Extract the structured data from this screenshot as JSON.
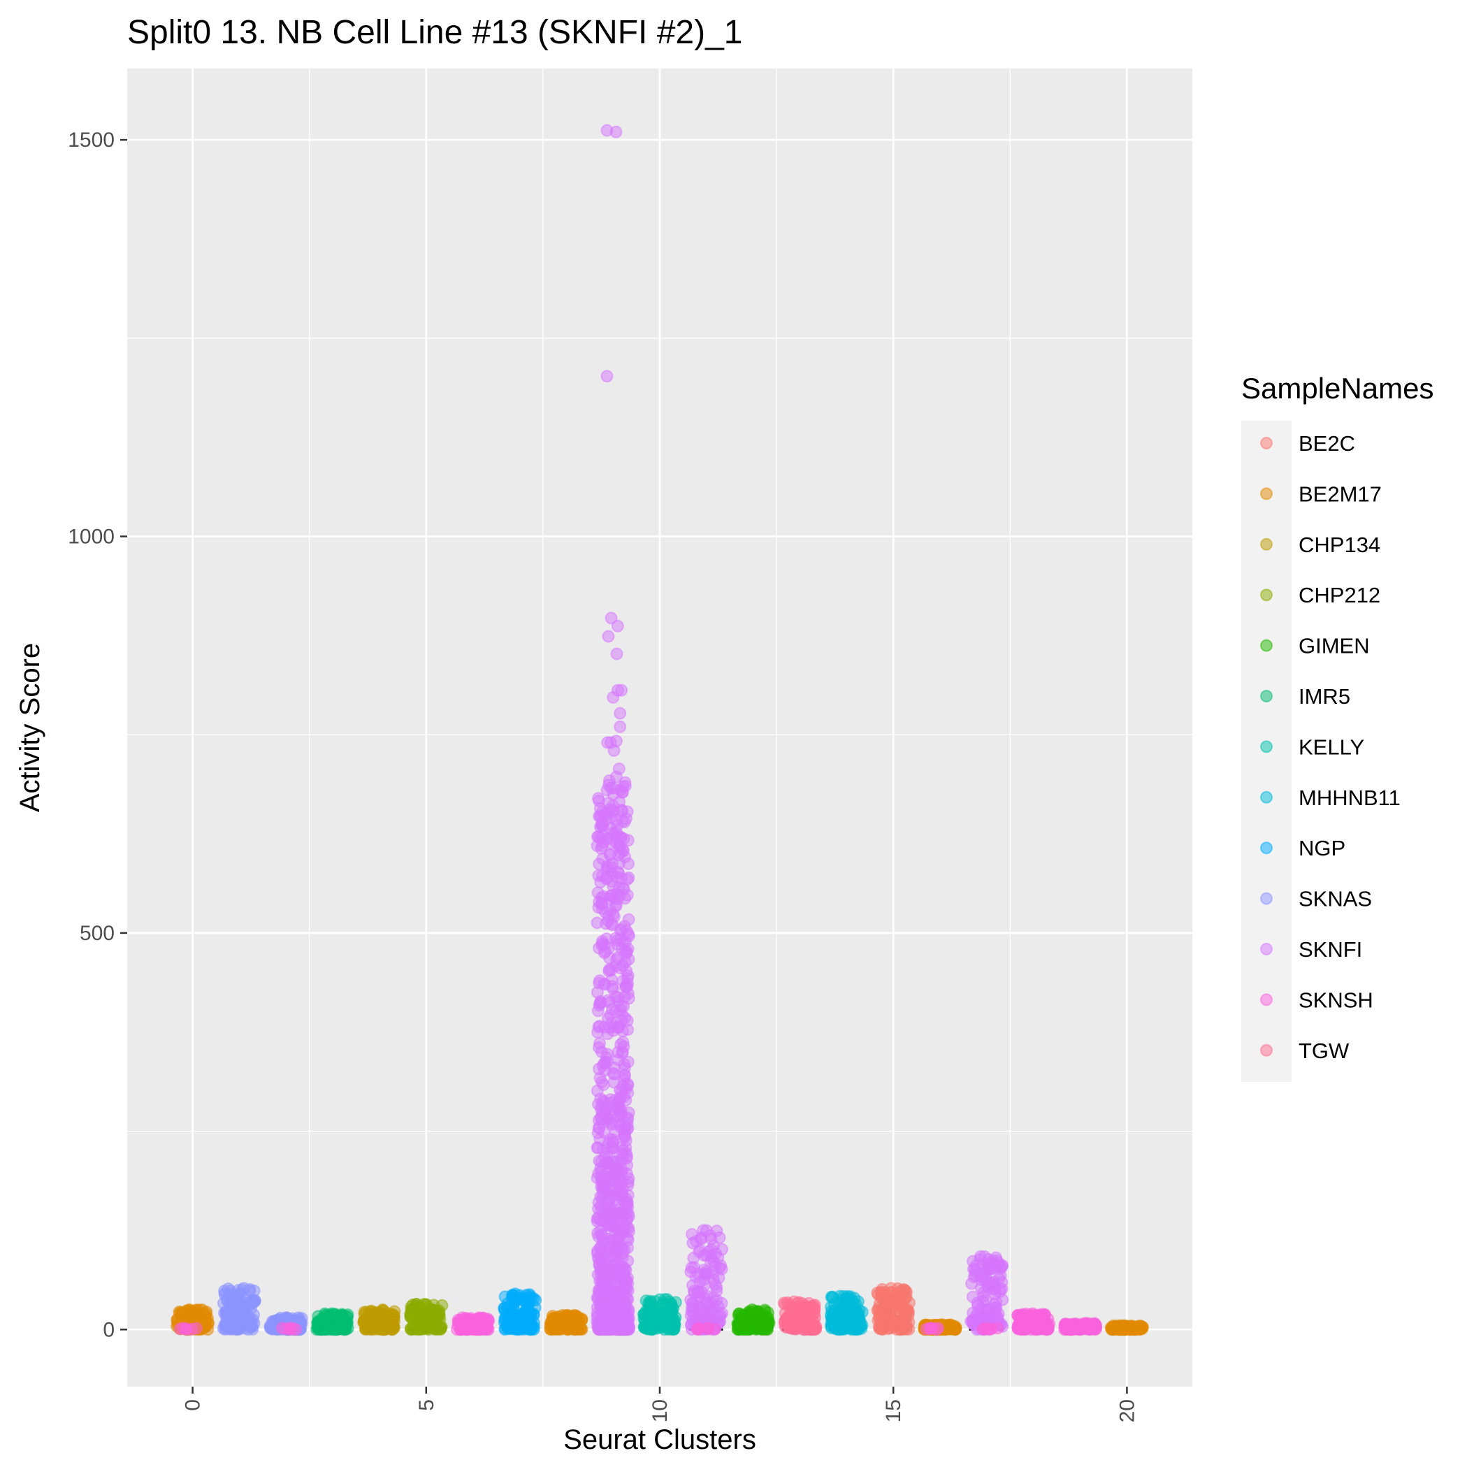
{
  "chart_data": {
    "type": "scatter",
    "title": "Split0 13. NB Cell Line #13 (SKNFI #2)_1",
    "xlabel": "Seurat Clusters",
    "ylabel": "Activity Score",
    "xlim": [
      -1.4,
      21.4
    ],
    "ylim": [
      -72,
      1590
    ],
    "x_ticks": [
      0,
      5,
      10,
      15,
      20
    ],
    "x_tick_labels": [
      "0",
      "5",
      "10",
      "15",
      "20"
    ],
    "y_ticks": [
      0,
      500,
      1000,
      1500
    ],
    "y_tick_labels": [
      "0",
      "500",
      "1000",
      "1500"
    ],
    "grid": true,
    "legend": {
      "title": "SampleNames",
      "position": "right",
      "entries": [
        {
          "name": "BE2C",
          "color": "#F8766D"
        },
        {
          "name": "BE2M17",
          "color": "#E18A00"
        },
        {
          "name": "CHP134",
          "color": "#BE9C00"
        },
        {
          "name": "CHP212",
          "color": "#8CAB00"
        },
        {
          "name": "GIMEN",
          "color": "#24B700"
        },
        {
          "name": "IMR5",
          "color": "#00BE70"
        },
        {
          "name": "KELLY",
          "color": "#00C1AB"
        },
        {
          "name": "MHHNB11",
          "color": "#00BBDA"
        },
        {
          "name": "NGP",
          "color": "#00ACFC"
        },
        {
          "name": "SKNAS",
          "color": "#8B93FF"
        },
        {
          "name": "SKNFI",
          "color": "#D575FE"
        },
        {
          "name": "SKNSH",
          "color": "#F962DD"
        },
        {
          "name": "TGW",
          "color": "#FF6C91"
        }
      ]
    },
    "clusters": [
      {
        "cluster": 0,
        "sample": "BE2M17",
        "max": 25
      },
      {
        "cluster": 1,
        "sample": "SKNAS",
        "max": 52
      },
      {
        "cluster": 2,
        "sample": "SKNAS",
        "max": 15
      },
      {
        "cluster": 3,
        "sample": "IMR5",
        "max": 20
      },
      {
        "cluster": 4,
        "sample": "CHP134",
        "max": 25
      },
      {
        "cluster": 5,
        "sample": "CHP212",
        "max": 32
      },
      {
        "cluster": 6,
        "sample": "SKNSH",
        "max": 15
      },
      {
        "cluster": 7,
        "sample": "NGP",
        "max": 45
      },
      {
        "cluster": 8,
        "sample": "BE2M17",
        "max": 18
      },
      {
        "cluster": 9,
        "sample": "SKNFI",
        "max": 1510
      },
      {
        "cluster": 10,
        "sample": "KELLY",
        "max": 38
      },
      {
        "cluster": 11,
        "sample": "SKNFI",
        "max": 125
      },
      {
        "cluster": 12,
        "sample": "GIMEN",
        "max": 25
      },
      {
        "cluster": 13,
        "sample": "TGW",
        "max": 35
      },
      {
        "cluster": 14,
        "sample": "MHHNB11",
        "max": 42
      },
      {
        "cluster": 15,
        "sample": "BE2C",
        "max": 52
      },
      {
        "cluster": 16,
        "sample": "BE2M17",
        "max": 6
      },
      {
        "cluster": 17,
        "sample": "SKNFI",
        "max": 92
      },
      {
        "cluster": 18,
        "sample": "SKNSH",
        "max": 20
      },
      {
        "cluster": 19,
        "sample": "SKNSH",
        "max": 8
      },
      {
        "cluster": 20,
        "sample": "BE2M17",
        "max": 5
      }
    ],
    "outliers": [
      {
        "x": 8.87,
        "y": 1512,
        "sample": "SKNFI"
      },
      {
        "x": 8.87,
        "y": 1202,
        "sample": "SKNFI"
      },
      {
        "x": 8.96,
        "y": 897,
        "sample": "SKNFI"
      },
      {
        "x": 9.1,
        "y": 887,
        "sample": "SKNFI"
      },
      {
        "x": 8.9,
        "y": 874,
        "sample": "SKNFI"
      },
      {
        "x": 9.08,
        "y": 852,
        "sample": "SKNFI"
      },
      {
        "x": 9.1,
        "y": 806,
        "sample": "SKNFI"
      },
      {
        "x": 9.18,
        "y": 806,
        "sample": "SKNFI"
      },
      {
        "x": 9.0,
        "y": 797,
        "sample": "SKNFI"
      },
      {
        "x": 9.15,
        "y": 777,
        "sample": "SKNFI"
      },
      {
        "x": 9.15,
        "y": 760,
        "sample": "SKNFI"
      },
      {
        "x": 8.88,
        "y": 740,
        "sample": "SKNFI"
      },
      {
        "x": 8.95,
        "y": 740,
        "sample": "SKNFI"
      },
      {
        "x": 9.07,
        "y": 742,
        "sample": "SKNFI"
      },
      {
        "x": 9.02,
        "y": 730,
        "sample": "SKNFI"
      },
      {
        "x": 9.13,
        "y": 707,
        "sample": "SKNFI"
      },
      {
        "x": 9.07,
        "y": 697,
        "sample": "SKNFI"
      },
      {
        "x": 8.92,
        "y": 692,
        "sample": "SKNFI"
      },
      {
        "x": 8.87,
        "y": 680,
        "sample": "SKNFI"
      },
      {
        "x": 9.16,
        "y": 680,
        "sample": "SKNFI"
      },
      {
        "x": 11.0,
        "y": 125,
        "sample": "SKNFI"
      },
      {
        "x": 11.1,
        "y": 92,
        "sample": "SKNFI"
      },
      {
        "x": 11.15,
        "y": 86,
        "sample": "SKNFI"
      },
      {
        "x": 10.82,
        "y": 70,
        "sample": "SKNFI"
      },
      {
        "x": 11.15,
        "y": 63,
        "sample": "SKNFI"
      },
      {
        "x": 16.95,
        "y": 92,
        "sample": "SKNFI"
      },
      {
        "x": 17.05,
        "y": 80,
        "sample": "SKNFI"
      },
      {
        "x": 17.15,
        "y": 60,
        "sample": "SKNFI"
      },
      {
        "x": 17.18,
        "y": 45,
        "sample": "SKNFI"
      }
    ]
  }
}
